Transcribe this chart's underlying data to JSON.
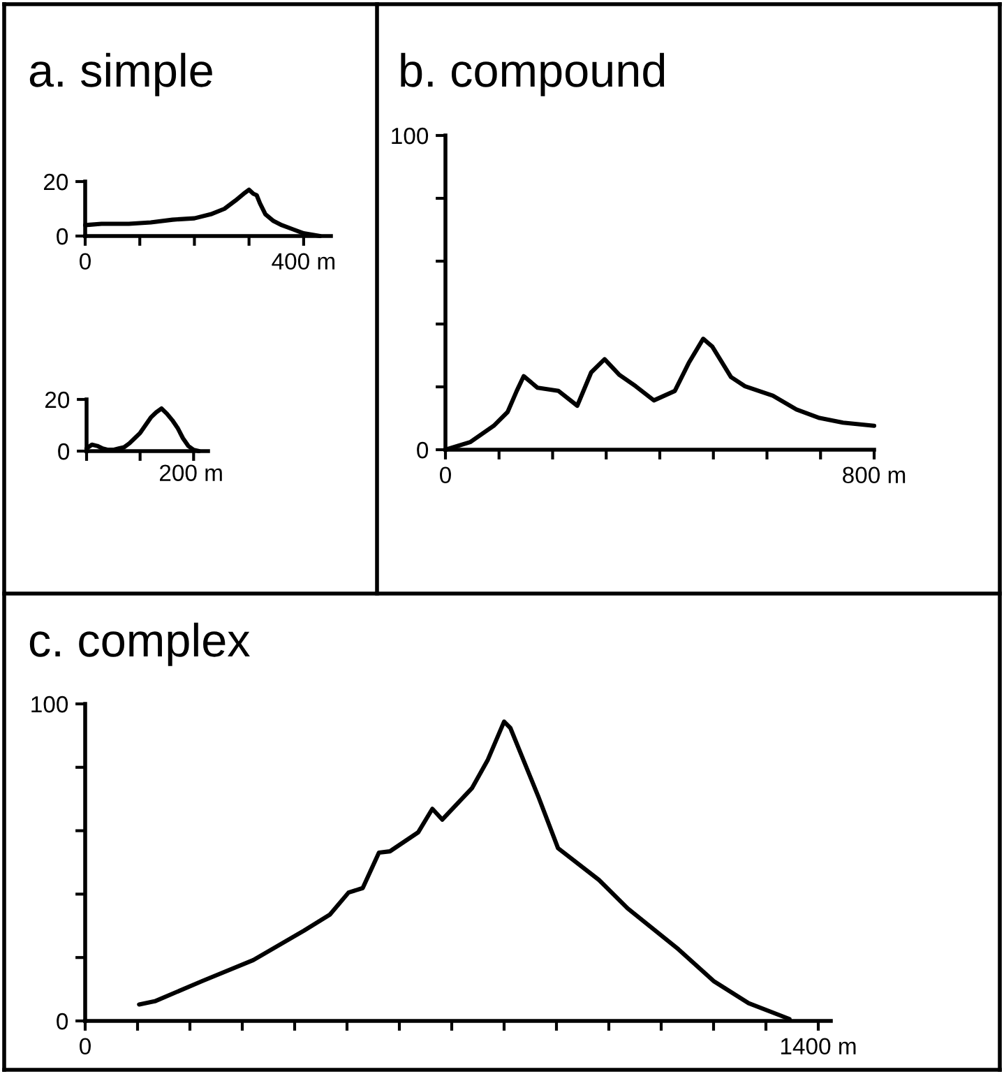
{
  "chart_data": [
    {
      "type": "line",
      "title": "a. simple",
      "x": [
        0,
        30,
        80,
        120,
        160,
        200,
        230,
        255,
        275,
        290,
        300,
        308,
        314,
        320,
        330,
        345,
        360,
        380,
        400,
        430
      ],
      "values": [
        4,
        4.5,
        4.5,
        5,
        6,
        6.5,
        8,
        10,
        13,
        15.5,
        17,
        15.5,
        15,
        12,
        8,
        5.5,
        4,
        2.5,
        1,
        0
      ],
      "color": "#000000",
      "xlim": [
        0,
        450
      ],
      "ylim": [
        0,
        20
      ],
      "xticks": [
        0,
        {
          "value": 100,
          "label": null
        },
        {
          "value": 200,
          "label": null
        },
        {
          "value": 300,
          "label": null
        },
        {
          "value": 400,
          "label": "400 m"
        }
      ],
      "yticks": [
        0,
        20
      ],
      "grid": false,
      "legend": false,
      "marker": "none",
      "line_style": "solid"
    },
    {
      "type": "line",
      "categories": [
        null,
        null,
        null,
        null,
        null,
        null,
        null,
        null,
        null,
        null,
        null,
        null,
        null,
        null,
        null,
        null,
        null,
        null,
        null,
        null,
        null,
        null
      ],
      "values": [
        1,
        2.5,
        2,
        1,
        0.5,
        0.5,
        1,
        1.5,
        3,
        5,
        7,
        10,
        13,
        15,
        16.5,
        14.5,
        12,
        9,
        5,
        2,
        0.5,
        0
      ],
      "color": "#000000",
      "ylim": [
        0,
        20
      ],
      "yticks": [
        0,
        20
      ],
      "annotations": [
        "200 m"
      ],
      "grid": false,
      "legend": false,
      "marker": "none",
      "line_style": "solid"
    },
    {
      "type": "line",
      "title": "b. compound",
      "x": [
        0,
        46,
        90,
        116,
        133,
        146,
        172,
        211,
        246,
        272,
        297,
        324,
        355,
        389,
        428,
        454,
        481,
        498,
        533,
        559,
        611,
        655,
        698,
        742,
        800
      ],
      "values": [
        0,
        2.4,
        7.6,
        12,
        18.7,
        23.4,
        19.7,
        18.7,
        14,
        24.6,
        28.8,
        23.9,
        20.2,
        15.7,
        18.7,
        27.6,
        35.3,
        32.8,
        23.1,
        20.2,
        17.2,
        12.8,
        10.1,
        8.6,
        7.6
      ],
      "color": "#000000",
      "xlim": [
        0,
        800
      ],
      "ylim": [
        0,
        100
      ],
      "xticks": [
        0,
        {
          "value": 100,
          "label": null
        },
        {
          "value": 200,
          "label": null
        },
        {
          "value": 300,
          "label": null
        },
        {
          "value": 400,
          "label": null
        },
        {
          "value": 500,
          "label": null
        },
        {
          "value": 600,
          "label": null
        },
        {
          "value": 700,
          "label": null
        },
        {
          "value": 800,
          "label": "800 m"
        }
      ],
      "yticks": [
        0,
        {
          "value": 20,
          "label": null
        },
        {
          "value": 40,
          "label": null
        },
        {
          "value": 60,
          "label": null
        },
        {
          "value": 80,
          "label": null
        },
        100
      ],
      "grid": false,
      "legend": false,
      "marker": "none",
      "line_style": "solid"
    },
    {
      "type": "line",
      "title": "c. complex",
      "x": [
        103,
        133,
        224,
        321,
        418,
        467,
        503,
        530,
        561,
        582,
        636,
        663,
        682,
        739,
        769,
        800,
        812,
        866,
        903,
        981,
        1036,
        1133,
        1200,
        1267,
        1345
      ],
      "values": [
        5.2,
        6.2,
        12.6,
        19.2,
        28.5,
        33.5,
        40.5,
        41.9,
        53.1,
        53.5,
        59.5,
        66.9,
        63.5,
        73.5,
        82.4,
        94.4,
        92.4,
        70.5,
        54.5,
        44.5,
        35.5,
        22.6,
        12.6,
        5.6,
        0.6
      ],
      "color": "#000000",
      "xlim": [
        0,
        1424
      ],
      "ylim": [
        0,
        100
      ],
      "xticks": [
        0,
        {
          "value": 100,
          "label": null
        },
        {
          "value": 200,
          "label": null
        },
        {
          "value": 300,
          "label": null
        },
        {
          "value": 400,
          "label": null
        },
        {
          "value": 500,
          "label": null
        },
        {
          "value": 600,
          "label": null
        },
        {
          "value": 700,
          "label": null
        },
        {
          "value": 800,
          "label": null
        },
        {
          "value": 900,
          "label": null
        },
        {
          "value": 1000,
          "label": null
        },
        {
          "value": 1100,
          "label": null
        },
        {
          "value": 1200,
          "label": null
        },
        {
          "value": 1300,
          "label": null
        },
        {
          "value": 1400,
          "label": "1400 m"
        }
      ],
      "yticks": [
        0,
        {
          "value": 20,
          "label": null
        },
        {
          "value": 40,
          "label": null
        },
        {
          "value": 60,
          "label": null
        },
        {
          "value": 80,
          "label": null
        },
        100
      ],
      "grid": false,
      "legend": false,
      "marker": "none",
      "line_style": "solid"
    }
  ]
}
